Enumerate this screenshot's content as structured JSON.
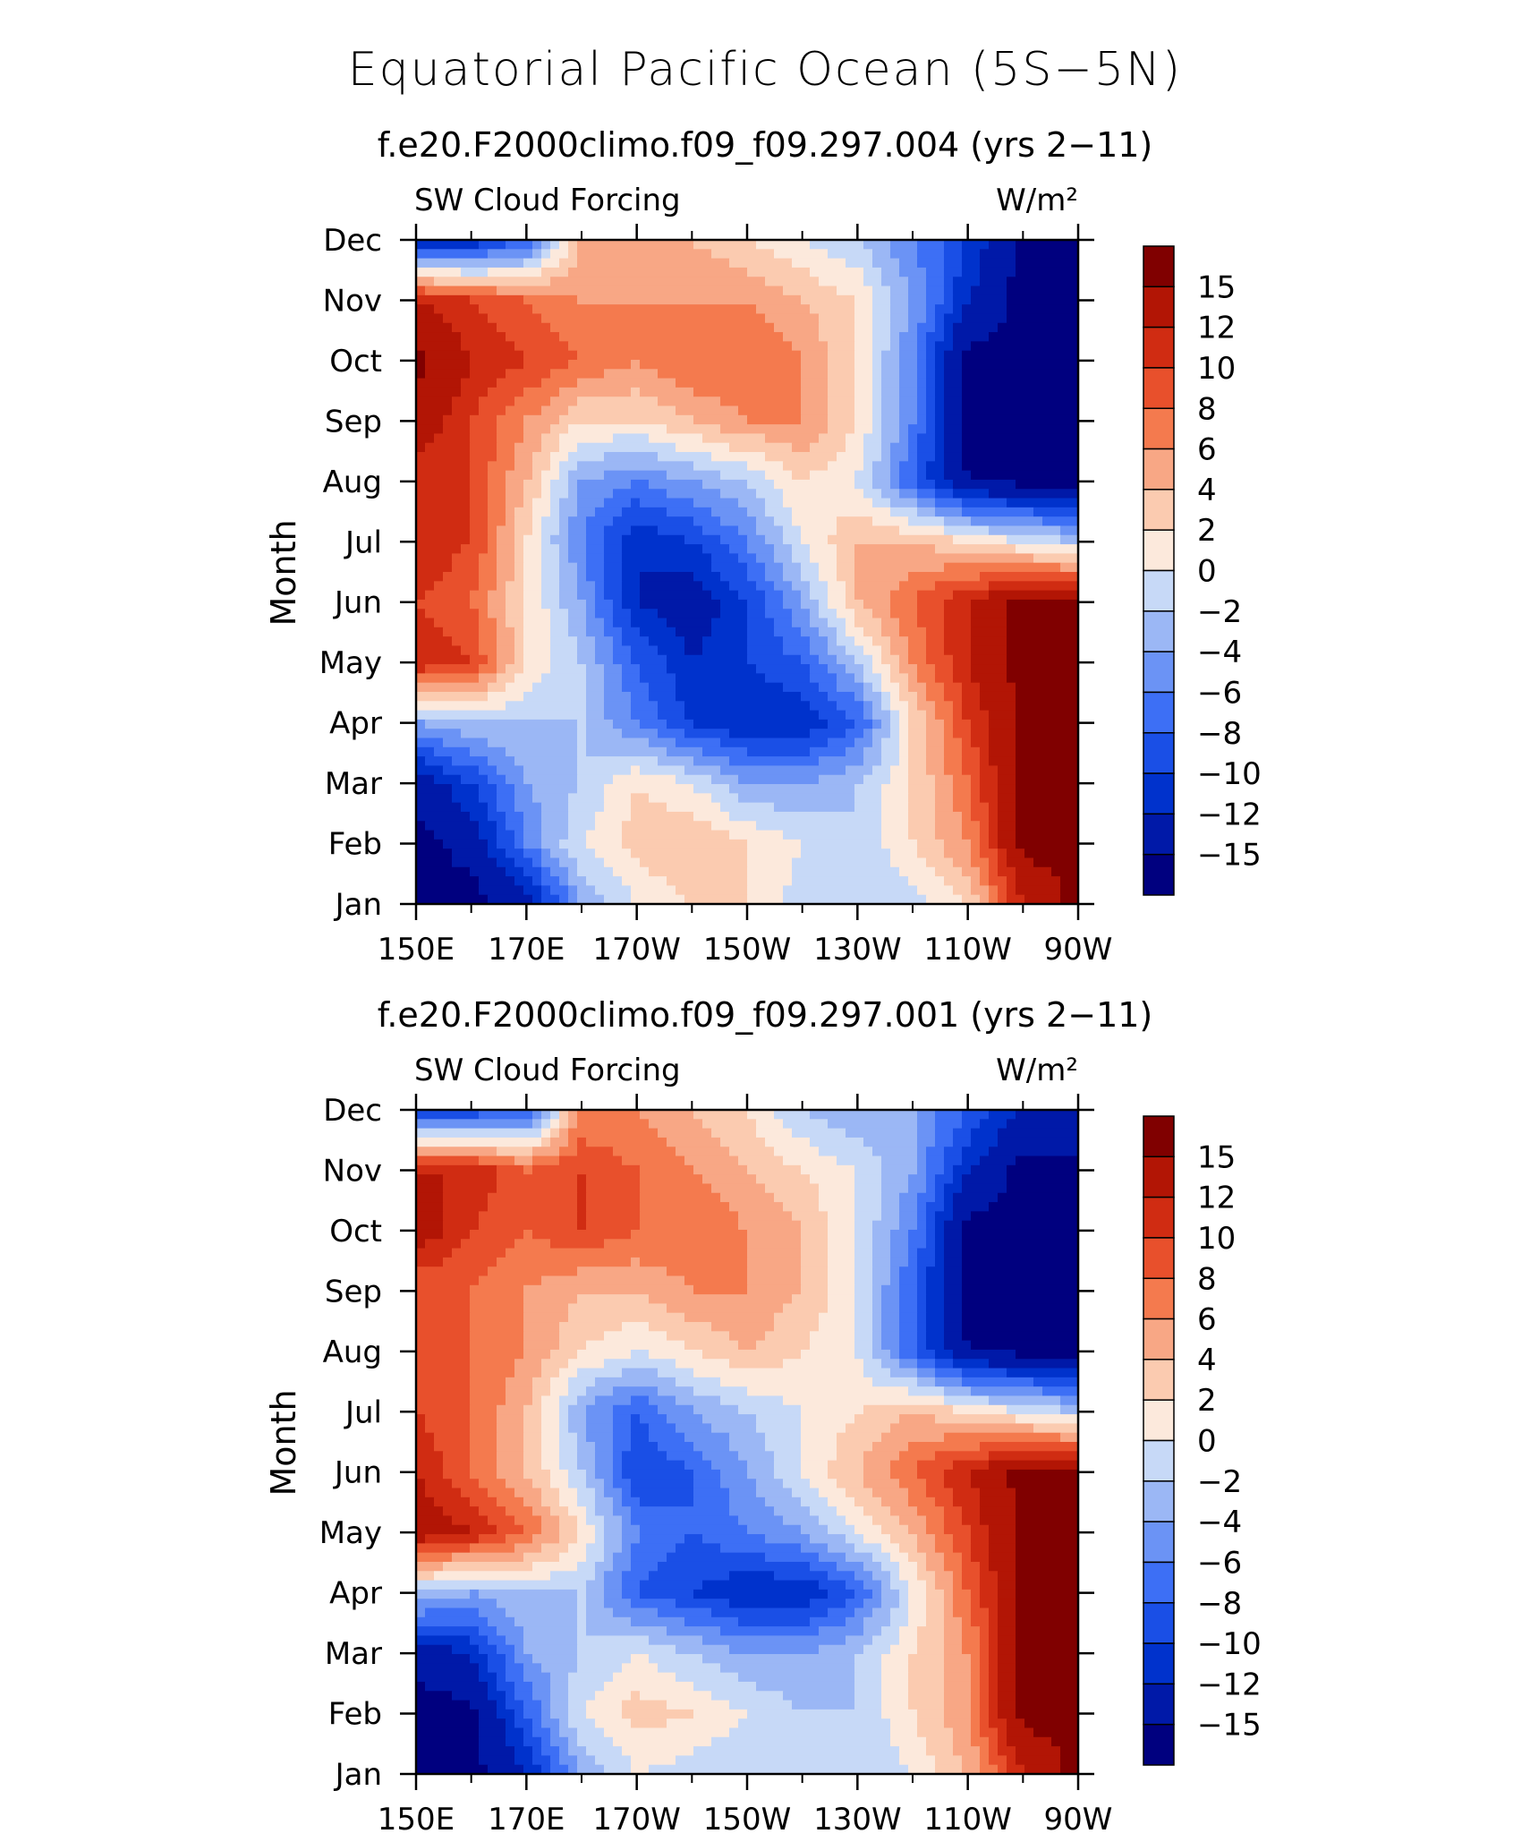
{
  "figure": {
    "title": "Equatorial Pacific Ocean (5S−5N)"
  },
  "chart_data": [
    {
      "type": "heatmap",
      "title": "f.e20.F2000climo.f09_f09.297.004 (yrs 2−11)",
      "left_label": "SW Cloud Forcing",
      "right_label": "W/m²",
      "ylabel": "Month",
      "xlabel": "",
      "x_tick_labels": [
        "150E",
        "170E",
        "170W",
        "150W",
        "130W",
        "110W",
        "90W"
      ],
      "y_tick_labels": [
        "Jan",
        "Feb",
        "Mar",
        "Apr",
        "May",
        "Jun",
        "Jul",
        "Aug",
        "Sep",
        "Oct",
        "Nov",
        "Dec"
      ],
      "x_lon": [
        150,
        160,
        170,
        180,
        190,
        200,
        210,
        220,
        230,
        240,
        250,
        260,
        270
      ],
      "values": [
        [
          -16,
          -16,
          -14,
          -4,
          0,
          2,
          2,
          -1,
          -2,
          -1,
          2,
          12,
          16
        ],
        [
          -16,
          -14,
          -6,
          0,
          3,
          4,
          2,
          0,
          -2,
          2,
          6,
          16,
          16
        ],
        [
          -14,
          -10,
          -4,
          -2,
          2,
          0,
          -4,
          -4,
          -2,
          2,
          8,
          16,
          16
        ],
        [
          -4,
          -2,
          -2,
          -2,
          -6,
          -10,
          -12,
          -12,
          -8,
          2,
          10,
          16,
          16
        ],
        [
          12,
          10,
          2,
          -2,
          -8,
          -12,
          -10,
          -8,
          -2,
          6,
          12,
          16,
          16
        ],
        [
          10,
          8,
          2,
          -4,
          -12,
          -14,
          -10,
          -4,
          4,
          8,
          12,
          16,
          16
        ],
        [
          12,
          10,
          2,
          -6,
          -12,
          -10,
          -6,
          0,
          4,
          4,
          2,
          0,
          -2
        ],
        [
          10,
          10,
          4,
          -4,
          -6,
          -4,
          -2,
          2,
          0,
          -8,
          -15,
          -16,
          -16
        ],
        [
          14,
          10,
          6,
          2,
          2,
          4,
          6,
          6,
          2,
          -6,
          -16,
          -16,
          -16
        ],
        [
          16,
          12,
          10,
          8,
          6,
          8,
          8,
          6,
          2,
          -6,
          -16,
          -16,
          -16
        ],
        [
          12,
          10,
          8,
          6,
          6,
          6,
          6,
          4,
          2,
          -4,
          -12,
          -16,
          -16
        ],
        [
          -12,
          -12,
          -8,
          4,
          6,
          4,
          2,
          0,
          -2,
          -6,
          -10,
          -16,
          -16
        ]
      ],
      "contour_levels": [
        -15,
        -12,
        -10,
        -8,
        -6,
        -4,
        -2,
        0,
        2,
        4,
        6,
        8,
        10,
        12,
        15
      ],
      "colorbar_labels": [
        "15",
        "12",
        "10",
        "8",
        "6",
        "4",
        "2",
        "0",
        "−2",
        "−4",
        "−6",
        "−8",
        "−10",
        "−12",
        "−15"
      ]
    },
    {
      "type": "heatmap",
      "title": "f.e20.F2000climo.f09_f09.297.001 (yrs 2−11)",
      "left_label": "SW Cloud Forcing",
      "right_label": "W/m²",
      "ylabel": "Month",
      "xlabel": "",
      "x_tick_labels": [
        "150E",
        "170E",
        "170W",
        "150W",
        "130W",
        "110W",
        "90W"
      ],
      "y_tick_labels": [
        "Jan",
        "Feb",
        "Mar",
        "Apr",
        "May",
        "Jun",
        "Jul",
        "Aug",
        "Sep",
        "Oct",
        "Nov",
        "Dec"
      ],
      "x_lon": [
        150,
        160,
        170,
        180,
        190,
        200,
        210,
        220,
        230,
        240,
        250,
        260,
        270
      ],
      "values": [
        [
          -16,
          -16,
          -12,
          -4,
          0,
          -1,
          -2,
          -2,
          -2,
          0,
          4,
          12,
          16
        ],
        [
          -16,
          -16,
          -8,
          0,
          3,
          2,
          0,
          -2,
          -2,
          2,
          6,
          16,
          16
        ],
        [
          -14,
          -12,
          -4,
          -2,
          0,
          -2,
          -4,
          -4,
          -2,
          2,
          6,
          16,
          16
        ],
        [
          -2,
          -4,
          -2,
          -2,
          -8,
          -10,
          -12,
          -12,
          -8,
          0,
          8,
          16,
          16
        ],
        [
          14,
          12,
          8,
          2,
          -6,
          -8,
          -6,
          -4,
          0,
          4,
          10,
          16,
          16
        ],
        [
          12,
          8,
          4,
          -2,
          -10,
          -8,
          -4,
          0,
          4,
          8,
          12,
          16,
          16
        ],
        [
          10,
          8,
          4,
          -4,
          -8,
          -4,
          -2,
          0,
          2,
          4,
          2,
          0,
          -2
        ],
        [
          10,
          8,
          6,
          2,
          0,
          2,
          4,
          2,
          0,
          -8,
          -15,
          -16,
          -16
        ],
        [
          8,
          8,
          6,
          4,
          4,
          6,
          6,
          4,
          0,
          -8,
          -16,
          -16,
          -16
        ],
        [
          14,
          10,
          8,
          10,
          8,
          8,
          6,
          4,
          0,
          -6,
          -16,
          -16,
          -16
        ],
        [
          12,
          12,
          8,
          10,
          8,
          6,
          4,
          2,
          0,
          -4,
          -12,
          -16,
          -16
        ],
        [
          -10,
          -10,
          -8,
          6,
          6,
          4,
          2,
          -2,
          -4,
          -4,
          -8,
          -12,
          -12
        ]
      ],
      "contour_levels": [
        -15,
        -12,
        -10,
        -8,
        -6,
        -4,
        -2,
        0,
        2,
        4,
        6,
        8,
        10,
        12,
        15
      ],
      "colorbar_labels": [
        "15",
        "12",
        "10",
        "8",
        "6",
        "4",
        "2",
        "0",
        "−2",
        "−4",
        "−6",
        "−8",
        "−10",
        "−12",
        "−15"
      ]
    }
  ],
  "colors": {
    "palette": [
      "#00007f",
      "#0019a8",
      "#0032cc",
      "#1a4fe6",
      "#3d6ff5",
      "#6b93f5",
      "#9bb7f5",
      "#c7d9f7",
      "#fce9dc",
      "#fbcbb0",
      "#f8a785",
      "#f47a4e",
      "#e8502c",
      "#d02c12",
      "#b21505",
      "#800000"
    ],
    "axis": "#000000"
  }
}
